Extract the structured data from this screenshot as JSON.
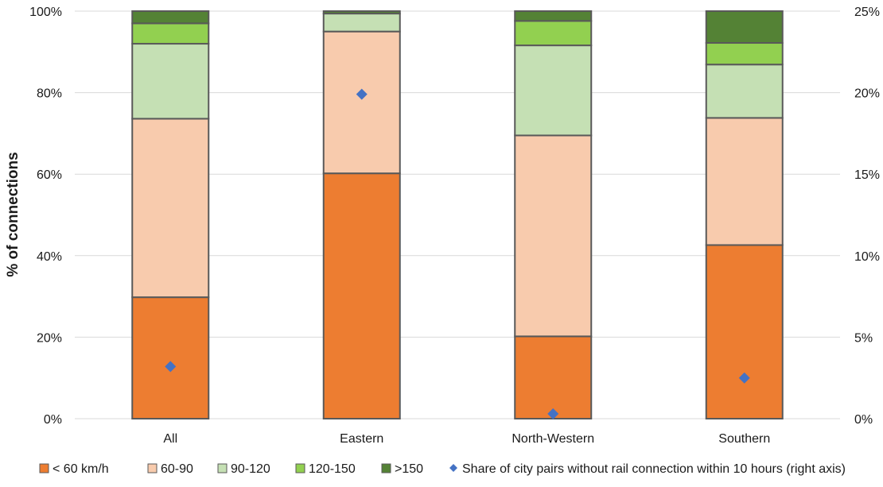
{
  "chart_data": {
    "type": "bar",
    "stacked": true,
    "categories": [
      "All",
      "Eastern",
      "North-Western",
      "Southern"
    ],
    "ylabel": "% of connections",
    "ylim": [
      0,
      100
    ],
    "y_ticks": [
      "0%",
      "20%",
      "40%",
      "60%",
      "80%",
      "100%"
    ],
    "y2lim": [
      0,
      25
    ],
    "y2_ticks": [
      "0%",
      "5%",
      "10%",
      "15%",
      "20%",
      "25%"
    ],
    "grid": true,
    "legend_position": "bottom",
    "series": [
      {
        "name": "< 60 km/h",
        "color": "#ED7D31",
        "values": [
          29.8,
          60.2,
          20.2,
          42.6
        ]
      },
      {
        "name": "60-90",
        "color": "#F8CBAD",
        "values": [
          43.8,
          34.8,
          49.3,
          31.2
        ]
      },
      {
        "name": "90-120",
        "color": "#C5E0B4",
        "values": [
          18.4,
          4.4,
          22.1,
          13.1
        ]
      },
      {
        "name": "120-150",
        "color": "#92D050",
        "values": [
          5.0,
          0.0,
          6.0,
          5.3
        ]
      },
      {
        "name": ">150",
        "color": "#548235",
        "values": [
          3.0,
          0.6,
          2.4,
          7.8
        ]
      }
    ],
    "marker_series": {
      "name": "Share of city pairs without rail connection within 10 hours (right axis)",
      "color": "#4472C4",
      "axis": "right",
      "values": [
        3.2,
        19.9,
        0.3,
        2.5
      ]
    }
  }
}
